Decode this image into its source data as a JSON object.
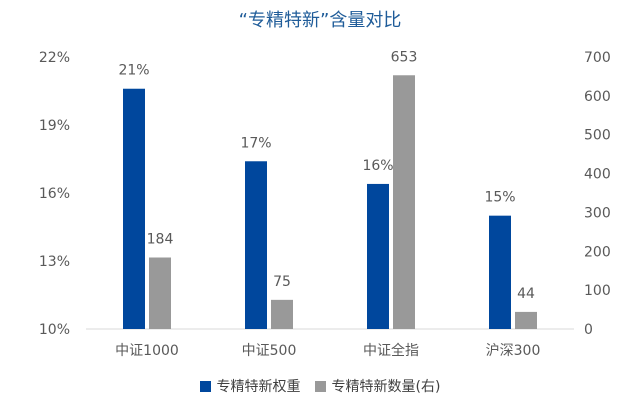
{
  "chart_data": {
    "type": "bar",
    "title": "“专精特新”含量对比",
    "categories": [
      "中证1000",
      "中证500",
      "中证全指",
      "沪深300"
    ],
    "series": [
      {
        "name": "专精特新权重",
        "axis": "left",
        "color": "#00479d",
        "values": [
          20.6,
          17.4,
          16.4,
          15.0
        ],
        "labels": [
          "21%",
          "17%",
          "16%",
          "15%"
        ]
      },
      {
        "name": "专精特新数量(右)",
        "axis": "right",
        "color": "#999999",
        "values": [
          184,
          75,
          653,
          44
        ],
        "labels": [
          "184",
          "75",
          "653",
          "44"
        ]
      }
    ],
    "y_left": {
      "min": 10,
      "max": 22,
      "ticks": [
        "10%",
        "13%",
        "16%",
        "19%",
        "22%"
      ],
      "tick_values": [
        10,
        13,
        16,
        19,
        22
      ]
    },
    "y_right": {
      "min": 0,
      "max": 700,
      "ticks": [
        "0",
        "100",
        "200",
        "300",
        "400",
        "500",
        "600",
        "700"
      ],
      "tick_values": [
        0,
        100,
        200,
        300,
        400,
        500,
        600,
        700
      ]
    },
    "grid": false,
    "legend": "bottom"
  }
}
